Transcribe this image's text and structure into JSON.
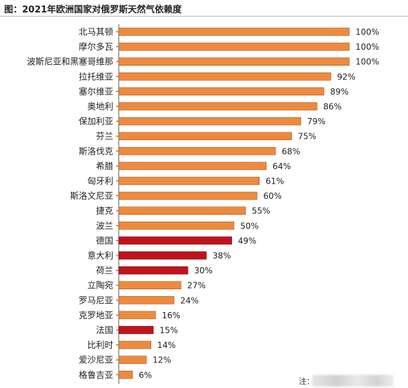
{
  "chart_data": {
    "type": "bar",
    "orientation": "horizontal",
    "title": "图：2021年欧洲国家对俄罗斯天然气依赖度",
    "categories": [
      "北马其顿",
      "摩尔多瓦",
      "波斯尼亚和黑塞哥维那",
      "拉托维亚",
      "塞尔维亚",
      "奥地利",
      "保加利亚",
      "芬兰",
      "斯洛伐克",
      "希腊",
      "匈牙利",
      "斯洛文尼亚",
      "捷克",
      "波兰",
      "德国",
      "意大利",
      "荷兰",
      "立陶宛",
      "罗马尼亚",
      "克罗地亚",
      "法国",
      "比利时",
      "爱沙尼亚",
      "格鲁吉亚"
    ],
    "values": [
      100,
      100,
      100,
      92,
      89,
      86,
      79,
      75,
      68,
      64,
      61,
      60,
      55,
      50,
      49,
      38,
      30,
      27,
      24,
      16,
      15,
      14,
      12,
      6
    ],
    "value_labels": [
      "100%",
      "100%",
      "100%",
      "92%",
      "89%",
      "86%",
      "79%",
      "75%",
      "68%",
      "64%",
      "61%",
      "60%",
      "55%",
      "50%",
      "49%",
      "38%",
      "30%",
      "27%",
      "24%",
      "16%",
      "15%",
      "14%",
      "12%",
      "6%"
    ],
    "highlighted": [
      "德国",
      "意大利",
      "荷兰",
      "法国"
    ],
    "xlim": [
      0,
      100
    ],
    "grid": false,
    "legend": "none",
    "colors": {
      "default": "#ee8a3f",
      "highlight": "#c0141c",
      "edge": "#a45a1c"
    }
  },
  "note": {
    "label": "注："
  }
}
